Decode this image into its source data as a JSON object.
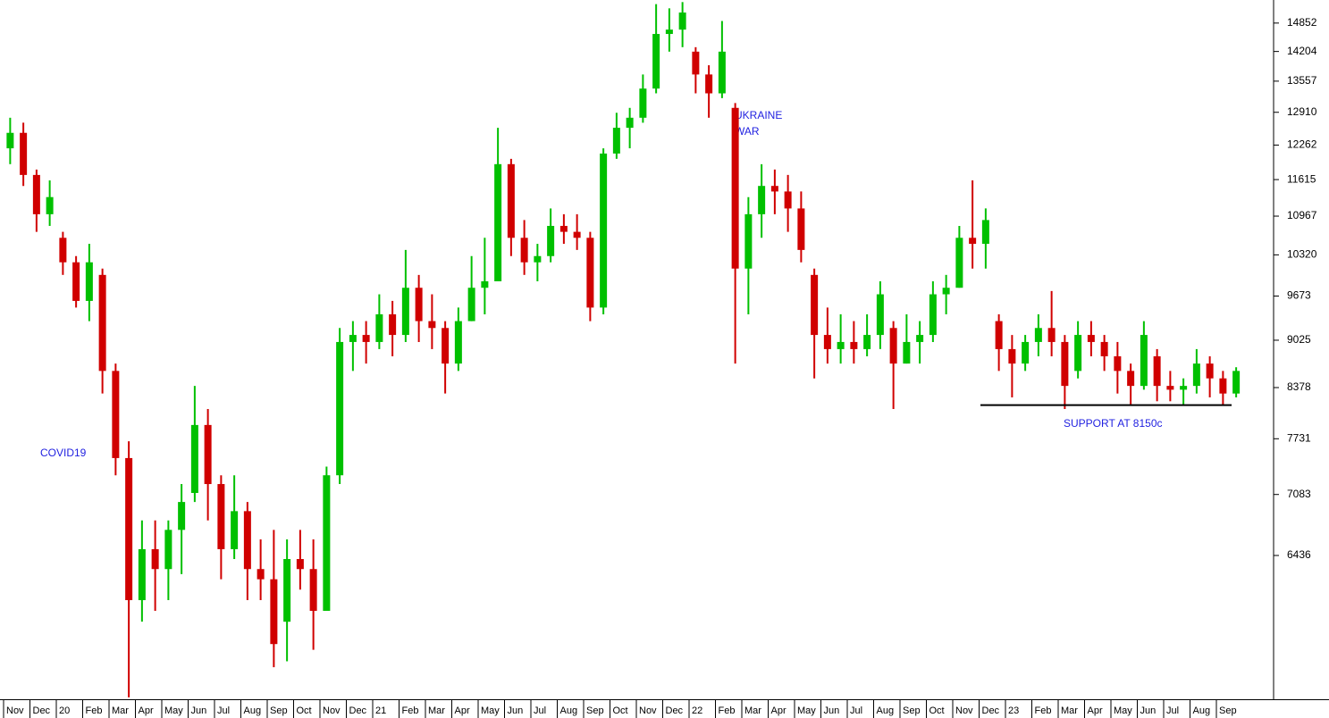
{
  "chart_data": {
    "type": "candlestick",
    "log_scale": true,
    "up_color": "#00c000",
    "down_color": "#d00000",
    "categories": [
      "Nov",
      null,
      "Dec",
      null,
      "20",
      null,
      "Feb",
      null,
      "Mar",
      null,
      "Apr",
      null,
      "May",
      null,
      "Jun",
      null,
      "Jul",
      null,
      "Aug",
      null,
      "Sep",
      null,
      "Oct",
      null,
      "Nov",
      null,
      "Dec",
      null,
      "21",
      null,
      "Feb",
      null,
      "Mar",
      null,
      "Apr",
      null,
      "May",
      null,
      "Jun",
      null,
      "Jul",
      null,
      "Aug",
      null,
      "Sep",
      null,
      "Oct",
      null,
      "Nov",
      null,
      "Dec",
      null,
      "22",
      null,
      "Feb",
      null,
      "Mar",
      null,
      "Apr",
      null,
      "May",
      null,
      "Jun",
      null,
      "Jul",
      null,
      "Aug",
      null,
      "Sep",
      null,
      "Oct",
      null,
      "Nov",
      null,
      "Dec",
      null,
      "23",
      null,
      "Feb",
      null,
      "Mar",
      null,
      "Apr",
      null,
      "May",
      null,
      "Jun",
      null,
      "Jul",
      null,
      "Aug",
      null,
      "Sep",
      null
    ],
    "open": [
      12200,
      12500,
      11700,
      11000,
      10600,
      10200,
      9600,
      10000,
      8600,
      7500,
      6000,
      6500,
      6300,
      6700,
      7100,
      7900,
      7200,
      6500,
      6900,
      6300,
      6200,
      5800,
      6400,
      6300,
      5900,
      7300,
      9000,
      9100,
      9000,
      9400,
      9100,
      9800,
      9300,
      9200,
      8700,
      9300,
      9800,
      9900,
      11900,
      10600,
      10200,
      10300,
      10800,
      10700,
      10600,
      9500,
      12100,
      12600,
      12800,
      13400,
      14600,
      14700,
      14200,
      13700,
      13300,
      13000,
      10100,
      11000,
      11500,
      11400,
      11100,
      10000,
      9100,
      8900,
      9000,
      8900,
      9100,
      9200,
      8700,
      9000,
      9100,
      9700,
      9800,
      10600,
      10500,
      9300,
      8900,
      8700,
      9000,
      9200,
      9000,
      8600,
      9100,
      9000,
      8800,
      8600,
      8400,
      8800,
      8400,
      8350,
      8400,
      8700,
      8500,
      8300
    ],
    "high": [
      12800,
      12700,
      11800,
      11600,
      10700,
      10300,
      10500,
      10100,
      8700,
      7700,
      6800,
      6800,
      6800,
      7200,
      8400,
      8100,
      7300,
      7300,
      7000,
      6600,
      6700,
      6600,
      6700,
      6600,
      7400,
      9200,
      9300,
      9300,
      9700,
      9600,
      10400,
      10000,
      9700,
      9300,
      9500,
      10300,
      10600,
      12600,
      12000,
      10900,
      10500,
      11100,
      11000,
      11000,
      10700,
      12200,
      12900,
      13000,
      13700,
      15300,
      15200,
      15350,
      14300,
      13900,
      14900,
      13100,
      11300,
      11900,
      11800,
      11700,
      11400,
      10100,
      9500,
      9400,
      9300,
      9400,
      9900,
      9300,
      9400,
      9300,
      9900,
      10000,
      10800,
      11600,
      11100,
      9400,
      9100,
      9100,
      9400,
      9750,
      9100,
      9300,
      9300,
      9100,
      9000,
      8700,
      9300,
      8900,
      8600,
      8500,
      8900,
      8800,
      8600,
      8650
    ],
    "low": [
      11900,
      11500,
      10700,
      10800,
      10000,
      9500,
      9300,
      8300,
      7300,
      5150,
      5800,
      5900,
      6000,
      6250,
      7000,
      6800,
      6200,
      6400,
      6000,
      6000,
      5400,
      5450,
      6100,
      5550,
      5900,
      7200,
      8600,
      8700,
      8900,
      8800,
      9000,
      9000,
      8900,
      8300,
      8600,
      9300,
      9400,
      9900,
      10300,
      10000,
      9900,
      10200,
      10500,
      10400,
      9300,
      9400,
      12000,
      12200,
      12700,
      13300,
      14200,
      14300,
      13300,
      12800,
      13200,
      8700,
      9400,
      10600,
      11000,
      10700,
      10200,
      8500,
      8700,
      8700,
      8700,
      8800,
      8900,
      8100,
      8700,
      8700,
      9000,
      9400,
      9800,
      10100,
      10100,
      8600,
      8250,
      8600,
      8800,
      8800,
      8100,
      8500,
      8800,
      8600,
      8300,
      8150,
      8350,
      8200,
      8200,
      8150,
      8300,
      8250,
      8150,
      8250
    ],
    "close": [
      12500,
      11700,
      11000,
      11300,
      10200,
      9600,
      10200,
      8600,
      7500,
      6000,
      6500,
      6300,
      6700,
      7000,
      7900,
      7200,
      6500,
      6900,
      6300,
      6200,
      5600,
      6400,
      6300,
      5900,
      7300,
      9000,
      9100,
      9000,
      9400,
      9100,
      9800,
      9300,
      9200,
      8700,
      9300,
      9800,
      9900,
      11900,
      10600,
      10200,
      10300,
      10800,
      10700,
      10600,
      9500,
      12100,
      12600,
      12800,
      13400,
      14600,
      14700,
      15100,
      13700,
      13300,
      14200,
      10100,
      11000,
      11500,
      11400,
      11100,
      10400,
      9100,
      8900,
      9000,
      8900,
      9100,
      9700,
      8700,
      9000,
      9100,
      9700,
      9800,
      10600,
      10500,
      10900,
      8900,
      8700,
      9000,
      9200,
      9000,
      8400,
      9100,
      9000,
      8800,
      8600,
      8400,
      9100,
      8400,
      8350,
      8400,
      8700,
      8500,
      8300,
      8600
    ],
    "ylim": [
      5135,
      15400
    ],
    "yticks": [
      14852,
      14204,
      13557,
      12910,
      12262,
      11615,
      10967,
      10320,
      9673,
      9025,
      8378,
      7731,
      7083,
      6436
    ],
    "annotations": {
      "covid": "COVID19",
      "ukraine": [
        "UKRAINE",
        "WAR"
      ],
      "support": "SUPPORT AT 8150c"
    },
    "support_level": 8150
  }
}
